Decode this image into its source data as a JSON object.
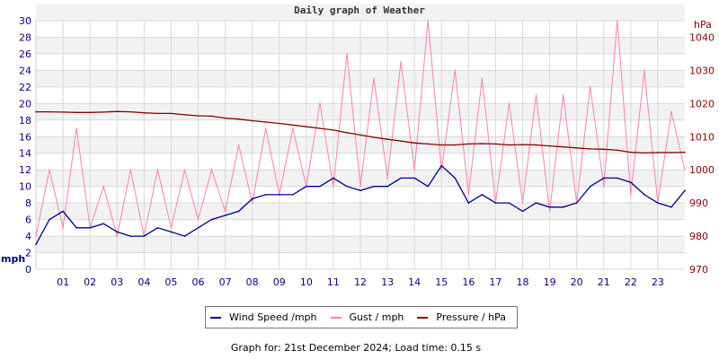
{
  "chart_data": {
    "type": "line",
    "title": "Daily graph of Weather",
    "left_axis": {
      "label": "mph",
      "range": [
        0,
        30
      ],
      "ticks": [
        0,
        2,
        4,
        6,
        8,
        10,
        12,
        14,
        16,
        18,
        20,
        22,
        24,
        26,
        28,
        30
      ],
      "color": "#00008b"
    },
    "right_axis": {
      "label": "hPa",
      "range": [
        970,
        1045
      ],
      "ticks": [
        970,
        980,
        990,
        1000,
        1010,
        1020,
        1030,
        1040
      ],
      "color": "#8b0000"
    },
    "x_ticks": [
      "01",
      "02",
      "03",
      "04",
      "05",
      "06",
      "07",
      "08",
      "09",
      "10",
      "11",
      "12",
      "13",
      "14",
      "15",
      "16",
      "17",
      "18",
      "19",
      "20",
      "21",
      "22",
      "23"
    ],
    "x_hours": [
      0,
      0.5,
      1,
      1.5,
      2,
      2.5,
      3,
      3.5,
      4,
      4.5,
      5,
      5.5,
      6,
      6.5,
      7,
      7.5,
      8,
      8.5,
      9,
      9.5,
      10,
      10.5,
      11,
      11.5,
      12,
      12.5,
      13,
      13.5,
      14,
      14.5,
      15,
      15.5,
      16,
      16.5,
      17,
      17.5,
      18,
      18.5,
      19,
      19.5,
      20,
      20.5,
      21,
      21.5,
      22,
      22.5,
      23,
      23.5,
      24
    ],
    "grid": true,
    "series": [
      {
        "name": "Wind Speed /mph",
        "color": "#00008b",
        "axis": "left",
        "values": [
          3,
          6,
          7,
          5,
          5,
          5.5,
          4.5,
          4,
          4,
          5,
          4.5,
          4,
          5,
          6,
          6.5,
          7,
          8.5,
          9,
          9,
          9,
          10,
          10,
          11,
          10,
          9.5,
          10,
          10,
          11,
          11,
          10,
          12.5,
          11,
          8,
          9,
          8,
          8,
          7,
          8,
          7.5,
          7.5,
          8,
          10,
          11,
          11,
          10.5,
          9,
          8,
          7.5,
          9.5
        ]
      },
      {
        "name": "Gust / mph",
        "color": "#ff7fa9",
        "axis": "left",
        "values": [
          4,
          12,
          5,
          17,
          5,
          10,
          4,
          12,
          4,
          12,
          5,
          12,
          6,
          12,
          7,
          15,
          8,
          17,
          9,
          17,
          10,
          20,
          10,
          26,
          10,
          23,
          11,
          25,
          12,
          30,
          12,
          24,
          9,
          23,
          8,
          20,
          8,
          21,
          7,
          21,
          8,
          22,
          10,
          30,
          9,
          24,
          8,
          19,
          12
        ]
      },
      {
        "name": "Pressure / hPa",
        "color": "#8b0000",
        "axis": "right",
        "values": [
          1017.5,
          1017.5,
          1017.4,
          1017.3,
          1017.3,
          1017.4,
          1017.6,
          1017.5,
          1017.2,
          1017.0,
          1017.0,
          1016.6,
          1016.3,
          1016.2,
          1015.6,
          1015.3,
          1014.8,
          1014.4,
          1014.0,
          1013.5,
          1013.0,
          1012.5,
          1012.0,
          1011.2,
          1010.5,
          1009.8,
          1009.2,
          1008.7,
          1008.1,
          1007.8,
          1007.5,
          1007.5,
          1007.8,
          1007.9,
          1007.8,
          1007.5,
          1007.6,
          1007.5,
          1007.2,
          1006.9,
          1006.6,
          1006.3,
          1006.2,
          1005.9,
          1005.3,
          1005.1,
          1005.2,
          1005.2,
          1005.3
        ]
      }
    ]
  },
  "footer": "Graph for: 21st December 2024; Load time: 0.15 s"
}
